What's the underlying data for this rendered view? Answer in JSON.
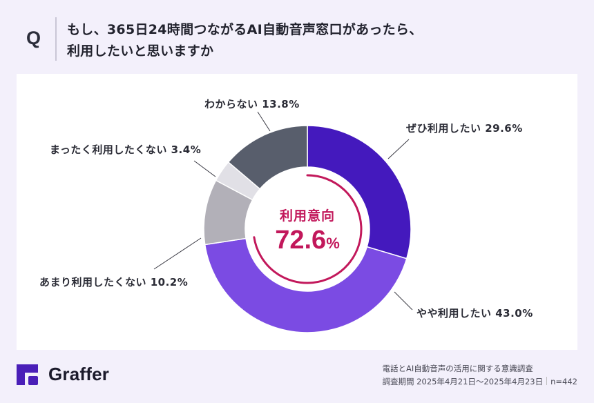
{
  "question": {
    "mark": "Q",
    "line1": "もし、365日24時間つながるAI自動音声窓口があったら、",
    "line2": "利用したいと思いますか"
  },
  "chart_data": {
    "type": "pie",
    "subtype": "donut",
    "title": "もし、365日24時間つながるAI自動音声窓口があったら、利用したいと思いますか",
    "categories": [
      "ぜひ利用したい",
      "やや利用したい",
      "あまり利用したくない",
      "まったく利用したくない",
      "わからない"
    ],
    "values": [
      29.6,
      43.0,
      10.2,
      3.4,
      13.8
    ],
    "unit": "%",
    "colors": [
      "#4419bd",
      "#7b4be3",
      "#b2b0b8",
      "#e1e0e6",
      "#585e6c"
    ],
    "labels": [
      {
        "text": "ぜひ利用したい 29.6%"
      },
      {
        "text": "やや利用したい 43.0%"
      },
      {
        "text": "あまり利用したくない 10.2%"
      },
      {
        "text": "まったく利用したくない 3.4%"
      },
      {
        "text": "わからない 13.8%"
      }
    ],
    "center": {
      "title": "利用意向",
      "value": "72.6",
      "unit": "%",
      "arc_fraction": 0.726,
      "color": "#c2185b"
    },
    "start_angle": "12 o'clock, clockwise"
  },
  "footer": {
    "brand": "Graffer",
    "brand_color": "#4a1fb8",
    "source_line1": "電話とAI自動音声の活用に関する意識調査",
    "period": "調査期間 2025年4月21日～2025年4月23日",
    "sample": "n=442"
  }
}
